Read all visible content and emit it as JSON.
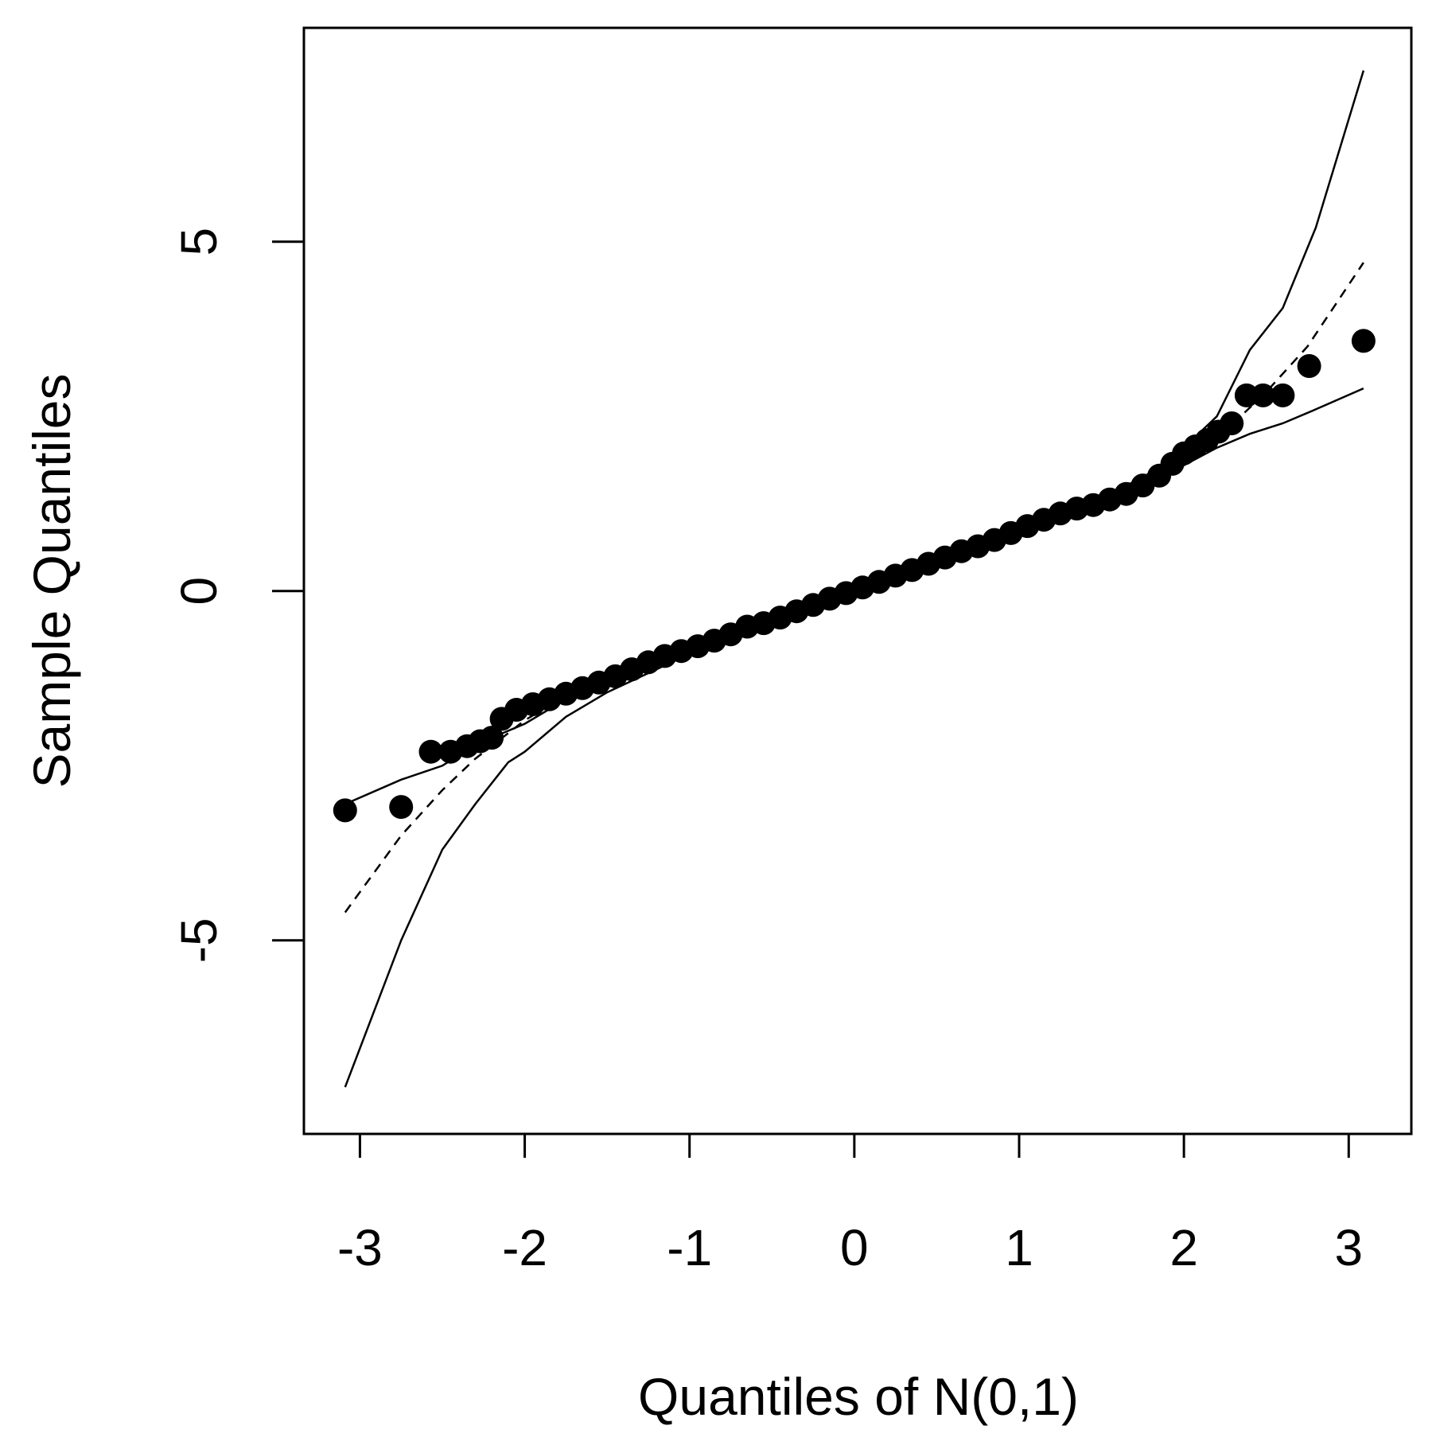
{
  "chart_data": {
    "type": "scatter",
    "title": "",
    "xlabel": "Quantiles of N(0,1)",
    "ylabel": "Sample Quantiles",
    "xlim": [
      -3.34,
      3.38
    ],
    "ylim": [
      -7.77,
      8.06
    ],
    "xticks": [
      -3,
      -2,
      -1,
      0,
      1,
      2,
      3
    ],
    "xtick_labels": [
      "-3",
      "-2",
      "-1",
      "0",
      "1",
      "2",
      "3"
    ],
    "yticks": [
      -5,
      0,
      5
    ],
    "ytick_labels": [
      "-5",
      "0",
      "5"
    ],
    "grid": false,
    "legend": "none",
    "series": [
      {
        "kind": "points",
        "points": [
          [
            -3.09,
            -3.14
          ],
          [
            -2.75,
            -3.09
          ],
          [
            -2.57,
            -2.3
          ],
          [
            -2.45,
            -2.3
          ],
          [
            -2.35,
            -2.22
          ],
          [
            -2.27,
            -2.15
          ],
          [
            -2.2,
            -2.1
          ],
          [
            -2.14,
            -1.83
          ],
          [
            -2.05,
            -1.7
          ],
          [
            -1.95,
            -1.62
          ],
          [
            -1.85,
            -1.55
          ],
          [
            -1.75,
            -1.47
          ],
          [
            -1.65,
            -1.39
          ],
          [
            -1.55,
            -1.31
          ],
          [
            -1.45,
            -1.22
          ],
          [
            -1.35,
            -1.12
          ],
          [
            -1.25,
            -1.02
          ],
          [
            -1.15,
            -0.93
          ],
          [
            -1.05,
            -0.86
          ],
          [
            -0.95,
            -0.79
          ],
          [
            -0.85,
            -0.71
          ],
          [
            -0.75,
            -0.62
          ],
          [
            -0.65,
            -0.51
          ],
          [
            -0.55,
            -0.46
          ],
          [
            -0.45,
            -0.38
          ],
          [
            -0.35,
            -0.29
          ],
          [
            -0.25,
            -0.2
          ],
          [
            -0.15,
            -0.11
          ],
          [
            -0.05,
            -0.03
          ],
          [
            0.05,
            0.05
          ],
          [
            0.15,
            0.13
          ],
          [
            0.25,
            0.22
          ],
          [
            0.35,
            0.3
          ],
          [
            0.45,
            0.39
          ],
          [
            0.55,
            0.48
          ],
          [
            0.65,
            0.57
          ],
          [
            0.75,
            0.64
          ],
          [
            0.85,
            0.73
          ],
          [
            0.95,
            0.83
          ],
          [
            1.05,
            0.93
          ],
          [
            1.15,
            1.02
          ],
          [
            1.25,
            1.11
          ],
          [
            1.35,
            1.18
          ],
          [
            1.45,
            1.23
          ],
          [
            1.55,
            1.31
          ],
          [
            1.65,
            1.39
          ],
          [
            1.75,
            1.51
          ],
          [
            1.85,
            1.65
          ],
          [
            1.93,
            1.82
          ],
          [
            2.0,
            1.97
          ],
          [
            2.07,
            2.07
          ],
          [
            2.14,
            2.16
          ],
          [
            2.21,
            2.28
          ],
          [
            2.29,
            2.4
          ],
          [
            2.38,
            2.8
          ],
          [
            2.48,
            2.8
          ],
          [
            2.6,
            2.8
          ],
          [
            2.76,
            3.22
          ],
          [
            3.09,
            3.58
          ]
        ]
      },
      {
        "kind": "dashed-line",
        "points": [
          [
            -3.09,
            -4.6
          ],
          [
            -2.75,
            -3.5
          ],
          [
            -2.5,
            -2.85
          ],
          [
            -2.3,
            -2.4
          ],
          [
            -2.0,
            -1.85
          ],
          [
            -1.75,
            -1.5
          ],
          [
            -1.5,
            -1.23
          ],
          [
            -1.0,
            -0.82
          ],
          [
            -0.5,
            -0.41
          ],
          [
            0.0,
            0.0
          ],
          [
            0.5,
            0.41
          ],
          [
            1.0,
            0.82
          ],
          [
            1.5,
            1.23
          ],
          [
            1.75,
            1.5
          ],
          [
            2.0,
            1.85
          ],
          [
            2.3,
            2.4
          ],
          [
            2.5,
            2.85
          ],
          [
            2.75,
            3.5
          ],
          [
            3.09,
            4.7
          ]
        ]
      },
      {
        "kind": "envelope-upper",
        "points": [
          [
            -3.09,
            -3.05
          ],
          [
            -2.75,
            -2.7
          ],
          [
            -2.5,
            -2.5
          ],
          [
            -2.3,
            -2.2
          ],
          [
            -2.0,
            -1.9
          ],
          [
            -1.75,
            -1.55
          ],
          [
            -1.5,
            -1.25
          ],
          [
            -1.0,
            -0.8
          ],
          [
            -0.5,
            -0.38
          ],
          [
            0.0,
            0.02
          ],
          [
            0.5,
            0.43
          ],
          [
            1.0,
            0.85
          ],
          [
            1.5,
            1.35
          ],
          [
            1.75,
            1.62
          ],
          [
            2.0,
            2.05
          ],
          [
            2.2,
            2.5
          ],
          [
            2.4,
            3.45
          ],
          [
            2.6,
            4.05
          ],
          [
            2.8,
            5.2
          ],
          [
            3.09,
            7.45
          ]
        ]
      },
      {
        "kind": "envelope-lower",
        "points": [
          [
            -3.09,
            -7.1
          ],
          [
            -2.75,
            -5.0
          ],
          [
            -2.5,
            -3.7
          ],
          [
            -2.3,
            -3.05
          ],
          [
            -2.1,
            -2.45
          ],
          [
            -2.0,
            -2.3
          ],
          [
            -1.75,
            -1.8
          ],
          [
            -1.5,
            -1.45
          ],
          [
            -1.0,
            -0.9
          ],
          [
            -0.5,
            -0.45
          ],
          [
            0.0,
            -0.02
          ],
          [
            0.5,
            0.4
          ],
          [
            1.0,
            0.82
          ],
          [
            1.5,
            1.27
          ],
          [
            1.75,
            1.55
          ],
          [
            2.0,
            1.8
          ],
          [
            2.2,
            2.05
          ],
          [
            2.4,
            2.25
          ],
          [
            2.6,
            2.4
          ],
          [
            2.8,
            2.6
          ],
          [
            3.09,
            2.9
          ]
        ]
      }
    ]
  }
}
